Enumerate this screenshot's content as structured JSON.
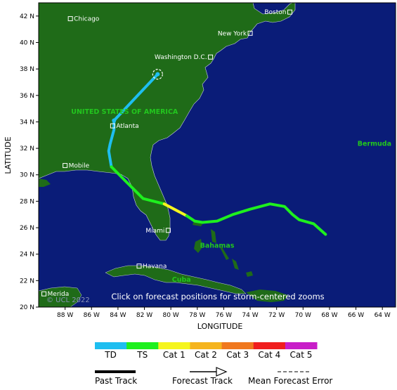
{
  "map": {
    "x_axis_title": "LONGITUDE",
    "y_axis_title": "LATITUDE",
    "x_ticks": [
      "88 W",
      "86 W",
      "84 W",
      "82 W",
      "80 W",
      "78 W",
      "76 W",
      "74 W",
      "72 W",
      "70 W",
      "68 W",
      "66 W",
      "64 W"
    ],
    "y_ticks": [
      "42 N",
      "40 N",
      "38 N",
      "36 N",
      "34 N",
      "32 N",
      "30 N",
      "28 N",
      "26 N",
      "24 N",
      "22 N",
      "20 N"
    ],
    "lon_range": [
      -90,
      -63
    ],
    "lat_range": [
      20,
      43
    ],
    "cities": [
      {
        "name": "Chicago",
        "lon": -87.6,
        "lat": 41.8
      },
      {
        "name": "Boston",
        "lon": -71.0,
        "lat": 42.3
      },
      {
        "name": "New York",
        "lon": -74.0,
        "lat": 40.7
      },
      {
        "name": "Washington D.C.",
        "lon": -77.0,
        "lat": 38.9
      },
      {
        "name": "Atlanta",
        "lon": -84.4,
        "lat": 33.7
      },
      {
        "name": "Mobile",
        "lon": -88.0,
        "lat": 30.7
      },
      {
        "name": "Miami",
        "lon": -80.2,
        "lat": 25.8
      },
      {
        "name": "Havana",
        "lon": -82.4,
        "lat": 23.1
      },
      {
        "name": "Merida",
        "lon": -89.6,
        "lat": 21.0
      }
    ],
    "regions": [
      {
        "name": "UNITED STATES OF AMERICA",
        "lon": -83.5,
        "lat": 34.6
      },
      {
        "name": "Bermuda",
        "lon": -64.6,
        "lat": 32.2
      },
      {
        "name": "Bahamas",
        "lon": -76.5,
        "lat": 24.5
      },
      {
        "name": "Cuba",
        "lon": -79.2,
        "lat": 21.9
      }
    ],
    "notice": "Click on forecast positions for storm-centered zooms",
    "copyright": "© UCL 2022",
    "current_position": {
      "lon": -81.0,
      "lat": 37.6
    }
  },
  "track": {
    "segments": [
      {
        "category": "TD",
        "points": [
          [
            -81.0,
            37.6
          ],
          [
            -84.3,
            34.1
          ]
        ]
      },
      {
        "category": "TD",
        "points": [
          [
            -84.3,
            34.1
          ],
          [
            -84.3,
            33.4
          ],
          [
            -84.6,
            32.3
          ],
          [
            -84.7,
            31.8
          ],
          [
            -84.5,
            30.6
          ]
        ]
      },
      {
        "category": "TS",
        "points": [
          [
            -84.5,
            30.6
          ],
          [
            -83.5,
            29.6
          ],
          [
            -82.1,
            28.2
          ],
          [
            -80.5,
            27.8
          ]
        ]
      },
      {
        "category": "Cat 1",
        "points": [
          [
            -80.5,
            27.8
          ],
          [
            -78.8,
            26.9
          ]
        ]
      },
      {
        "category": "TS",
        "points": [
          [
            -78.8,
            26.9
          ],
          [
            -78.2,
            26.5
          ],
          [
            -77.6,
            26.4
          ],
          [
            -76.5,
            26.5
          ],
          [
            -75.3,
            27.0
          ],
          [
            -74.0,
            27.4
          ],
          [
            -72.5,
            27.8
          ],
          [
            -71.4,
            27.6
          ],
          [
            -70.8,
            27.0
          ],
          [
            -70.3,
            26.6
          ],
          [
            -69.2,
            26.3
          ],
          [
            -68.3,
            25.5
          ]
        ]
      }
    ]
  },
  "legend": {
    "categories": [
      {
        "label": "TD",
        "color": "#1ebef0"
      },
      {
        "label": "TS",
        "color": "#1ef01e"
      },
      {
        "label": "Cat 1",
        "color": "#f5f51e"
      },
      {
        "label": "Cat 2",
        "color": "#f5b41e"
      },
      {
        "label": "Cat 3",
        "color": "#f0781e"
      },
      {
        "label": "Cat 4",
        "color": "#f01e1e"
      },
      {
        "label": "Cat 5",
        "color": "#c81ec8"
      }
    ],
    "past_track": "Past Track",
    "forecast_track": "Forecast Track",
    "mean_forecast_error": "Mean Forecast Error"
  },
  "colors": {
    "ocean": "#0a1c78",
    "land": "#1f6b18",
    "frame": "#000000"
  }
}
